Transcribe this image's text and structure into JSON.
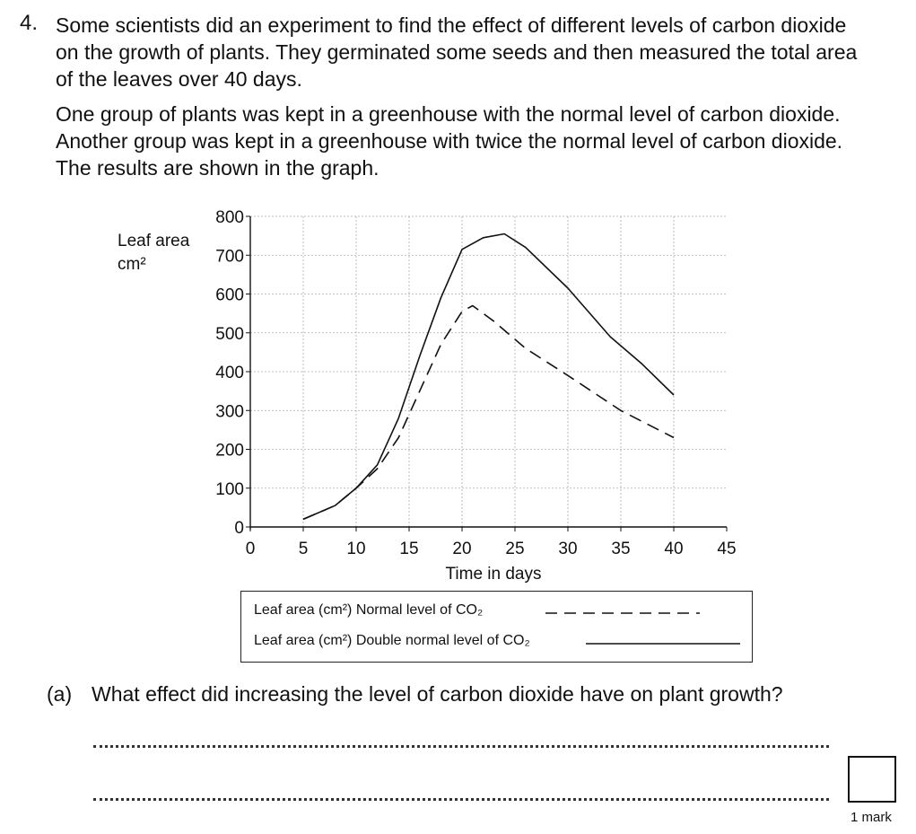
{
  "question": {
    "number": "4.",
    "intro_paragraph_1": "Some scientists did an experiment to find the effect of different levels of carbon dioxide on the growth of plants. They germinated some seeds and then measured the total area of the leaves over 40 days.",
    "intro_paragraph_2": "One group of plants was kept in a greenhouse with the normal level of carbon dioxide. Another group was kept in a greenhouse with twice the normal level of carbon dioxide. The results are shown in the graph."
  },
  "chart_data": {
    "type": "line",
    "title": "",
    "xlabel": "Time in days",
    "ylabel_line1": "Leaf area",
    "ylabel_line2": "cm²",
    "xlim": [
      0,
      45
    ],
    "ylim": [
      0,
      800
    ],
    "xticks": [
      0,
      5,
      10,
      15,
      20,
      25,
      30,
      35,
      40,
      45
    ],
    "yticks": [
      0,
      100,
      200,
      300,
      400,
      500,
      600,
      700,
      800
    ],
    "grid": true,
    "legend_position": "below",
    "series": [
      {
        "name": "Leaf area (cm²) Normal level of CO₂",
        "style": "dashed",
        "x": [
          5,
          8,
          10,
          12,
          14,
          16,
          18,
          20,
          21,
          23,
          26,
          30,
          35,
          40
        ],
        "y": [
          20,
          55,
          100,
          150,
          230,
          350,
          470,
          555,
          570,
          530,
          460,
          390,
          300,
          230
        ]
      },
      {
        "name": "Leaf area (cm²) Double normal level of CO₂",
        "style": "solid",
        "x": [
          5,
          8,
          10,
          12,
          14,
          16,
          18,
          20,
          22,
          24,
          26,
          30,
          34,
          37,
          40
        ],
        "y": [
          20,
          55,
          100,
          160,
          280,
          440,
          590,
          715,
          745,
          755,
          720,
          615,
          490,
          420,
          340
        ]
      }
    ]
  },
  "legend": {
    "normal_label": "Leaf area (cm²) Normal level of CO₂",
    "double_label": "Leaf area (cm²) Double normal level of CO₂"
  },
  "part_a": {
    "label": "(a)",
    "question": "What effect did increasing the level of carbon dioxide have on plant growth?",
    "mark_label": "1 mark"
  }
}
